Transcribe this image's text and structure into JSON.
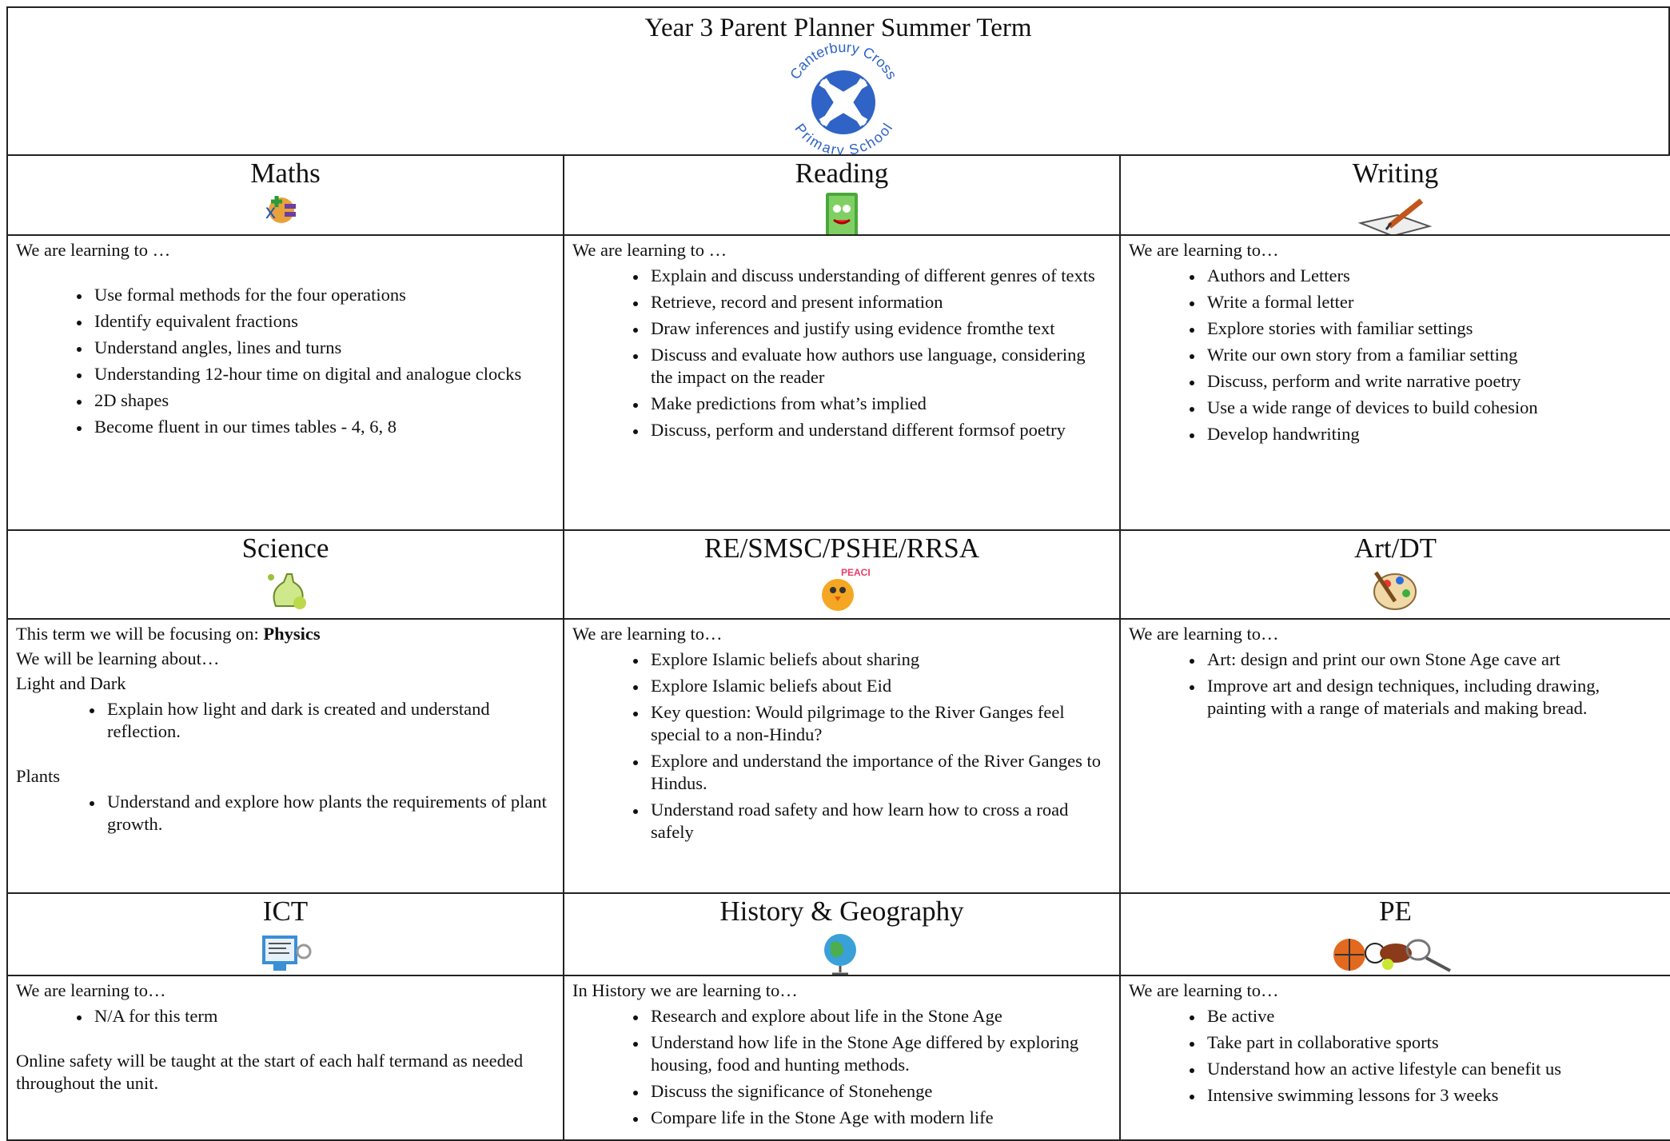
{
  "header": {
    "title": "Year 3 Parent Planner Summer Term",
    "logo_top": "Canterbury Cross",
    "logo_bottom": "Primary School"
  },
  "sections": [
    {
      "title": "Maths",
      "content": [
        {
          "text": "We are learning to …"
        },
        {
          "list": [
            "Use formal methods for the four operations",
            "Identify equivalent fractions",
            "Understand angles, lines and turns",
            "Understanding 12-hour time on digital and analogue clocks",
            "2D shapes",
            "Become fluent in our times tables - 4, 6, 8"
          ]
        }
      ]
    },
    {
      "title": "Reading",
      "content": [
        {
          "text": "We are learning to …"
        },
        {
          "list": [
            "Explain and discuss understanding of different genres of texts",
            "Retrieve, record and present information",
            "Draw inferences and justify using evidence fromthe text",
            "Discuss and evaluate how authors use language, considering the impact on the reader",
            "Make predictions from what’s implied",
            "Discuss, perform and understand different formsof poetry"
          ]
        }
      ]
    },
    {
      "title": "Writing",
      "content": [
        {
          "text": "We are learning to…"
        },
        {
          "list": [
            "Authors and Letters",
            "Write a formal letter",
            "Explore stories with familiar settings",
            "Write our own story from a familiar setting",
            "Discuss, perform and write narrative poetry",
            "Use a wide range of devices to build cohesion",
            "Develop handwriting"
          ]
        }
      ]
    },
    {
      "title": "Science",
      "content": [
        {
          "text": "This term we will be focusing on:",
          "bold": "Physics"
        },
        {
          "text": "We will be learning about…"
        },
        {
          "text": "Light and Dark"
        },
        {
          "list": [
            "Explain how light and dark is created and understand reflection."
          ]
        },
        {
          "text": "Plants"
        },
        {
          "list": [
            "Understand and explore how plants the requirements of plant growth."
          ]
        }
      ]
    },
    {
      "title": "RE/SMSC/PSHE/RRSA",
      "content": [
        {
          "text": "We are learning to…"
        },
        {
          "list": [
            "Explore Islamic beliefs about sharing",
            "Explore Islamic beliefs about Eid",
            "Key question: Would pilgrimage to the River Ganges feel special to a non-Hindu?",
            "Explore and understand the importance of the River Ganges to Hindus.",
            "Understand road safety and how learn how to cross a road safely"
          ]
        }
      ]
    },
    {
      "title": "Art/DT",
      "content": [
        {
          "text": "We are learning to…"
        },
        {
          "list": [
            "Art: design and print our own Stone Age cave art",
            "Improve art and design techniques, including drawing, painting with a range of materials and making bread."
          ]
        }
      ]
    },
    {
      "title": "ICT",
      "content": [
        {
          "text": "We are learning to…"
        },
        {
          "list": [
            "N/A for this term"
          ]
        },
        {
          "text": "Online safety will be taught at the start of each half termand as needed throughout the unit."
        }
      ]
    },
    {
      "title": "History & Geography",
      "content": [
        {
          "text": "In History we are learning to…"
        },
        {
          "list": [
            "Research and explore about life in the Stone Age",
            "Understand how life in the Stone Age differed by exploring housing, food and hunting methods.",
            "Discuss the significance of Stonehenge",
            "Compare life in the Stone Age with modern life"
          ]
        }
      ]
    },
    {
      "title": "PE",
      "content": [
        {
          "text": "We are learning to…"
        },
        {
          "list": [
            "Be active",
            "Take part in collaborative sports",
            "Understand how an active lifestyle can benefit us",
            "Intensive swimming lessons for 3 weeks"
          ]
        }
      ]
    }
  ]
}
